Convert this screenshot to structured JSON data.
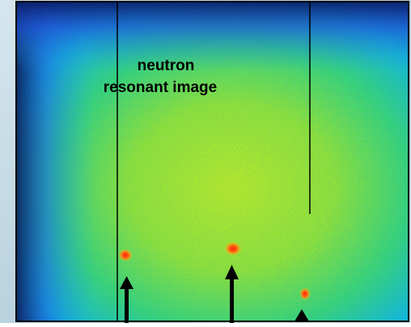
{
  "label": {
    "line1": "neutron",
    "line2": "resonant image"
  }
}
